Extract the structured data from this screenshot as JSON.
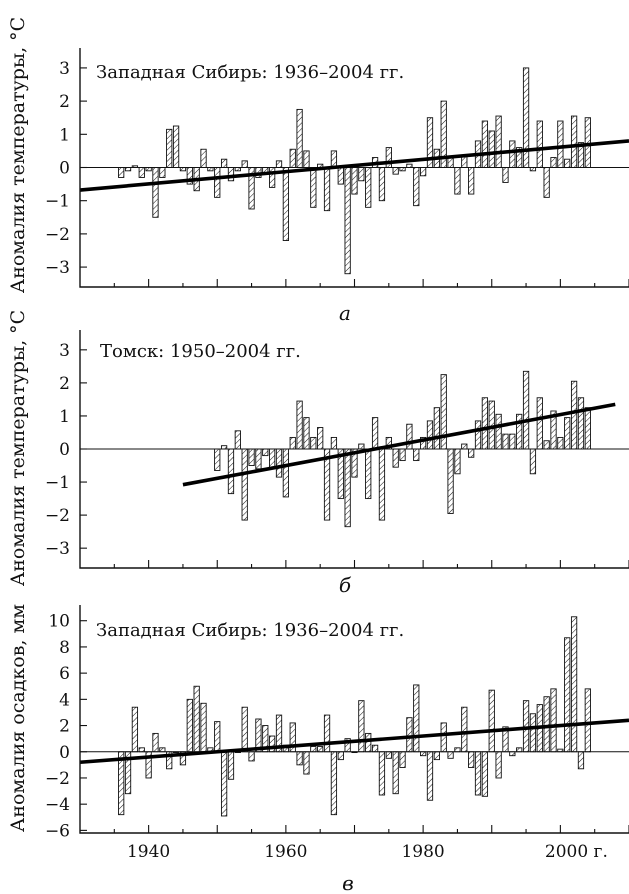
{
  "chart_data": [
    {
      "type": "bar",
      "title": "Западная Сибирь: 1936–2004 гг.",
      "ylabel": "Аномалия температуры, °C",
      "panel_label": "а",
      "xlim": [
        1930,
        2010
      ],
      "ylim": [
        -3.6,
        3.6
      ],
      "yticks": [
        -3,
        -2,
        -1,
        0,
        1,
        2,
        3
      ],
      "years": [
        1936,
        1937,
        1938,
        1939,
        1940,
        1941,
        1942,
        1943,
        1944,
        1945,
        1946,
        1947,
        1948,
        1949,
        1950,
        1951,
        1952,
        1953,
        1954,
        1955,
        1956,
        1957,
        1958,
        1959,
        1960,
        1961,
        1962,
        1963,
        1964,
        1965,
        1966,
        1967,
        1968,
        1969,
        1970,
        1971,
        1972,
        1973,
        1974,
        1975,
        1976,
        1977,
        1978,
        1979,
        1980,
        1981,
        1982,
        1983,
        1984,
        1985,
        1986,
        1987,
        1988,
        1989,
        1990,
        1991,
        1992,
        1993,
        1994,
        1995,
        1996,
        1997,
        1998,
        1999,
        2000,
        2001,
        2002,
        2003,
        2004
      ],
      "values": [
        -0.3,
        -0.1,
        0.05,
        -0.3,
        -0.1,
        -1.5,
        -0.3,
        1.15,
        1.25,
        -0.1,
        -0.5,
        -0.7,
        0.55,
        -0.1,
        -0.9,
        0.25,
        -0.4,
        -0.1,
        0.2,
        -1.25,
        -0.3,
        -0.2,
        -0.6,
        0.2,
        -2.2,
        0.55,
        1.75,
        0.5,
        -1.2,
        0.1,
        -1.3,
        0.5,
        -0.5,
        -3.2,
        -0.8,
        -0.4,
        -1.2,
        0.3,
        -1.0,
        0.6,
        -0.2,
        -0.1,
        0.1,
        -1.15,
        -0.25,
        1.5,
        0.55,
        2.0,
        0.3,
        -0.8,
        0.35,
        -0.8,
        0.8,
        1.4,
        1.1,
        1.55,
        -0.45,
        0.8,
        0.6,
        3.0,
        -0.1,
        1.4,
        -0.9,
        0.3,
        1.4,
        0.25,
        1.55,
        0.75,
        1.5
      ],
      "trend": {
        "x": [
          1930,
          2010
        ],
        "y": [
          -0.68,
          0.8
        ]
      }
    },
    {
      "type": "bar",
      "title": "Томск: 1950–2004 гг.",
      "ylabel": "Аномалия температуры, °C",
      "panel_label": "б",
      "xlim": [
        1930,
        2010
      ],
      "ylim": [
        -3.6,
        3.6
      ],
      "yticks": [
        -3,
        -2,
        -1,
        0,
        1,
        2,
        3
      ],
      "years": [
        1950,
        1951,
        1952,
        1953,
        1954,
        1955,
        1956,
        1957,
        1958,
        1959,
        1960,
        1961,
        1962,
        1963,
        1964,
        1965,
        1966,
        1967,
        1968,
        1969,
        1970,
        1971,
        1972,
        1973,
        1974,
        1975,
        1976,
        1977,
        1978,
        1979,
        1980,
        1981,
        1982,
        1983,
        1984,
        1985,
        1986,
        1987,
        1988,
        1989,
        1990,
        1991,
        1992,
        1993,
        1994,
        1995,
        1996,
        1997,
        1998,
        1999,
        2000,
        2001,
        2002,
        2003,
        2004
      ],
      "values": [
        -0.65,
        0.1,
        -1.35,
        0.55,
        -2.15,
        -0.5,
        -0.6,
        -0.2,
        -0.55,
        -0.85,
        -1.45,
        0.35,
        1.45,
        0.95,
        0.35,
        0.65,
        -2.15,
        0.35,
        -1.5,
        -2.35,
        -0.85,
        0.15,
        -1.5,
        0.95,
        -2.15,
        0.35,
        -0.55,
        -0.35,
        0.75,
        -0.35,
        0.35,
        0.85,
        1.25,
        2.25,
        -1.95,
        -0.75,
        0.15,
        -0.25,
        0.85,
        1.55,
        1.45,
        1.05,
        0.45,
        0.45,
        1.05,
        2.35,
        -0.75,
        1.55,
        0.25,
        1.15,
        0.35,
        0.95,
        2.05,
        1.55,
        1.25
      ],
      "trend": {
        "x": [
          1945,
          2008
        ],
        "y": [
          -1.08,
          1.35
        ]
      }
    },
    {
      "type": "bar",
      "title": "Западная Сибирь: 1936–2004 гг.",
      "ylabel": "Аномалия осадков, мм",
      "panel_label": "в",
      "xlim": [
        1930,
        2010
      ],
      "ylim": [
        -6.2,
        11.2
      ],
      "yticks": [
        -6,
        -4,
        -2,
        0,
        2,
        4,
        6,
        8,
        10
      ],
      "xticks": [
        1940,
        1960,
        1980,
        2000
      ],
      "xtick_labels": [
        "1940",
        "1960",
        "1980",
        "2000 г."
      ],
      "years": [
        1936,
        1937,
        1938,
        1939,
        1940,
        1941,
        1942,
        1943,
        1944,
        1945,
        1946,
        1947,
        1948,
        1949,
        1950,
        1951,
        1952,
        1953,
        1954,
        1955,
        1956,
        1957,
        1958,
        1959,
        1960,
        1961,
        1962,
        1963,
        1964,
        1965,
        1966,
        1967,
        1968,
        1969,
        1970,
        1971,
        1972,
        1973,
        1974,
        1975,
        1976,
        1977,
        1978,
        1979,
        1980,
        1981,
        1982,
        1983,
        1984,
        1985,
        1986,
        1987,
        1988,
        1989,
        1990,
        1991,
        1992,
        1993,
        1994,
        1995,
        1996,
        1997,
        1998,
        1999,
        2000,
        2001,
        2002,
        2003,
        2004
      ],
      "values": [
        -4.8,
        -3.2,
        3.4,
        0.3,
        -2.0,
        1.4,
        0.3,
        -1.3,
        0.0,
        -1.0,
        4.0,
        5.0,
        3.7,
        0.3,
        2.3,
        -4.9,
        -2.1,
        0.0,
        3.4,
        -0.7,
        2.5,
        2.0,
        1.2,
        2.8,
        0.5,
        2.2,
        -1.0,
        -1.7,
        0.4,
        0.4,
        2.8,
        -4.8,
        -0.6,
        1.0,
        0.0,
        3.9,
        1.4,
        0.5,
        -3.3,
        -0.5,
        -3.2,
        -1.2,
        2.6,
        5.1,
        -0.3,
        -3.7,
        -0.6,
        2.2,
        -0.5,
        0.3,
        3.4,
        -1.2,
        -3.3,
        -3.4,
        4.7,
        -2.0,
        1.9,
        -0.3,
        0.3,
        3.9,
        2.9,
        3.6,
        4.2,
        4.8,
        0.2,
        8.7,
        10.3,
        -1.3,
        4.8
      ],
      "trend": {
        "x": [
          1930,
          2010
        ],
        "y": [
          -0.8,
          2.4
        ]
      }
    }
  ]
}
